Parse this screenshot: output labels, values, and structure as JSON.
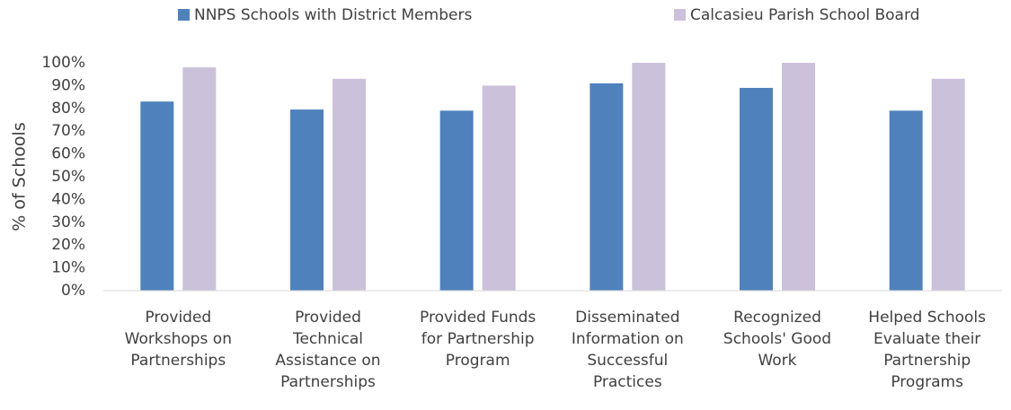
{
  "chart_data": {
    "type": "bar",
    "y_label": "% of Schools",
    "categories": [
      "Provided Workshops on Partnerships",
      "Provided Technical Assistance on Partnerships",
      "Provided Funds for Partnership Program",
      "Disseminated Information on Successful Practices",
      "Recognized Schools' Good Work",
      "Helped Schools Evaluate their Partnership Programs"
    ],
    "series": [
      {
        "name": "NNPS Schools with District Members",
        "color": "#4f81bd",
        "values": [
          83,
          79.5,
          79,
          91,
          89,
          79
        ]
      },
      {
        "name": "Calcasieu Parish School Board",
        "color": "#ccc1da",
        "values": [
          98,
          93,
          90,
          100,
          100,
          93
        ]
      }
    ],
    "ylim": [
      0,
      100
    ],
    "yticks": [
      {
        "value": 0,
        "label": "0%"
      },
      {
        "value": 10,
        "label": "10%"
      },
      {
        "value": 20,
        "label": "20%"
      },
      {
        "value": 30,
        "label": "30%"
      },
      {
        "value": 40,
        "label": "40%"
      },
      {
        "value": 50,
        "label": "50%"
      },
      {
        "value": 60,
        "label": "60%"
      },
      {
        "value": 70,
        "label": "70%"
      },
      {
        "value": 80,
        "label": "80%"
      },
      {
        "value": 90,
        "label": "90%"
      },
      {
        "value": 100,
        "label": "100%"
      }
    ],
    "grid": false,
    "legend": "top"
  }
}
